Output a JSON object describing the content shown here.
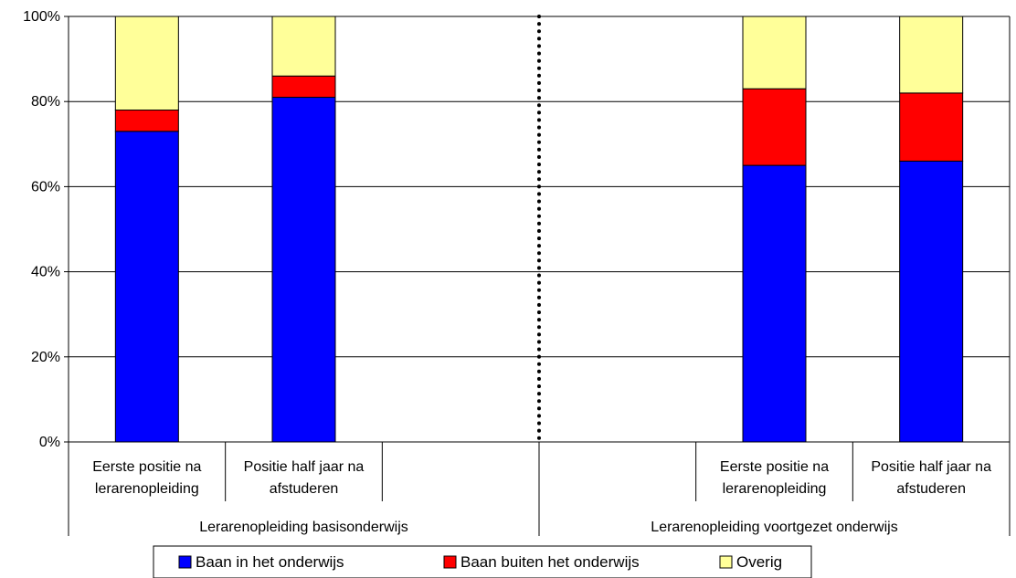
{
  "chart_data": {
    "type": "bar",
    "stacked": true,
    "percent_stacked": true,
    "ylim": [
      0,
      100
    ],
    "yticks": [
      "0%",
      "20%",
      "40%",
      "60%",
      "80%",
      "100%"
    ],
    "grid": true,
    "legend_position": "bottom",
    "groups": [
      {
        "label": "Lerarenopleiding basisonderwijs",
        "categories": [
          [
            "Eerste positie na",
            "lerarenopleiding"
          ],
          [
            "Positie half jaar na",
            "afstuderen"
          ]
        ]
      },
      {
        "label": "Lerarenopleiding voortgezet onderwijs",
        "categories": [
          [
            "Eerste positie na",
            "lerarenopleiding"
          ],
          [
            "Positie half jaar na",
            "afstuderen"
          ]
        ]
      }
    ],
    "series": [
      {
        "name": "Baan in het onderwijs",
        "color": "#0000FF",
        "values": [
          73,
          81,
          65,
          66
        ]
      },
      {
        "name": "Baan buiten het onderwijs",
        "color": "#FF0000",
        "values": [
          5,
          5,
          18,
          16
        ]
      },
      {
        "name": "Overig",
        "color": "#FFFF99",
        "values": [
          22,
          14,
          17,
          18
        ]
      }
    ]
  }
}
